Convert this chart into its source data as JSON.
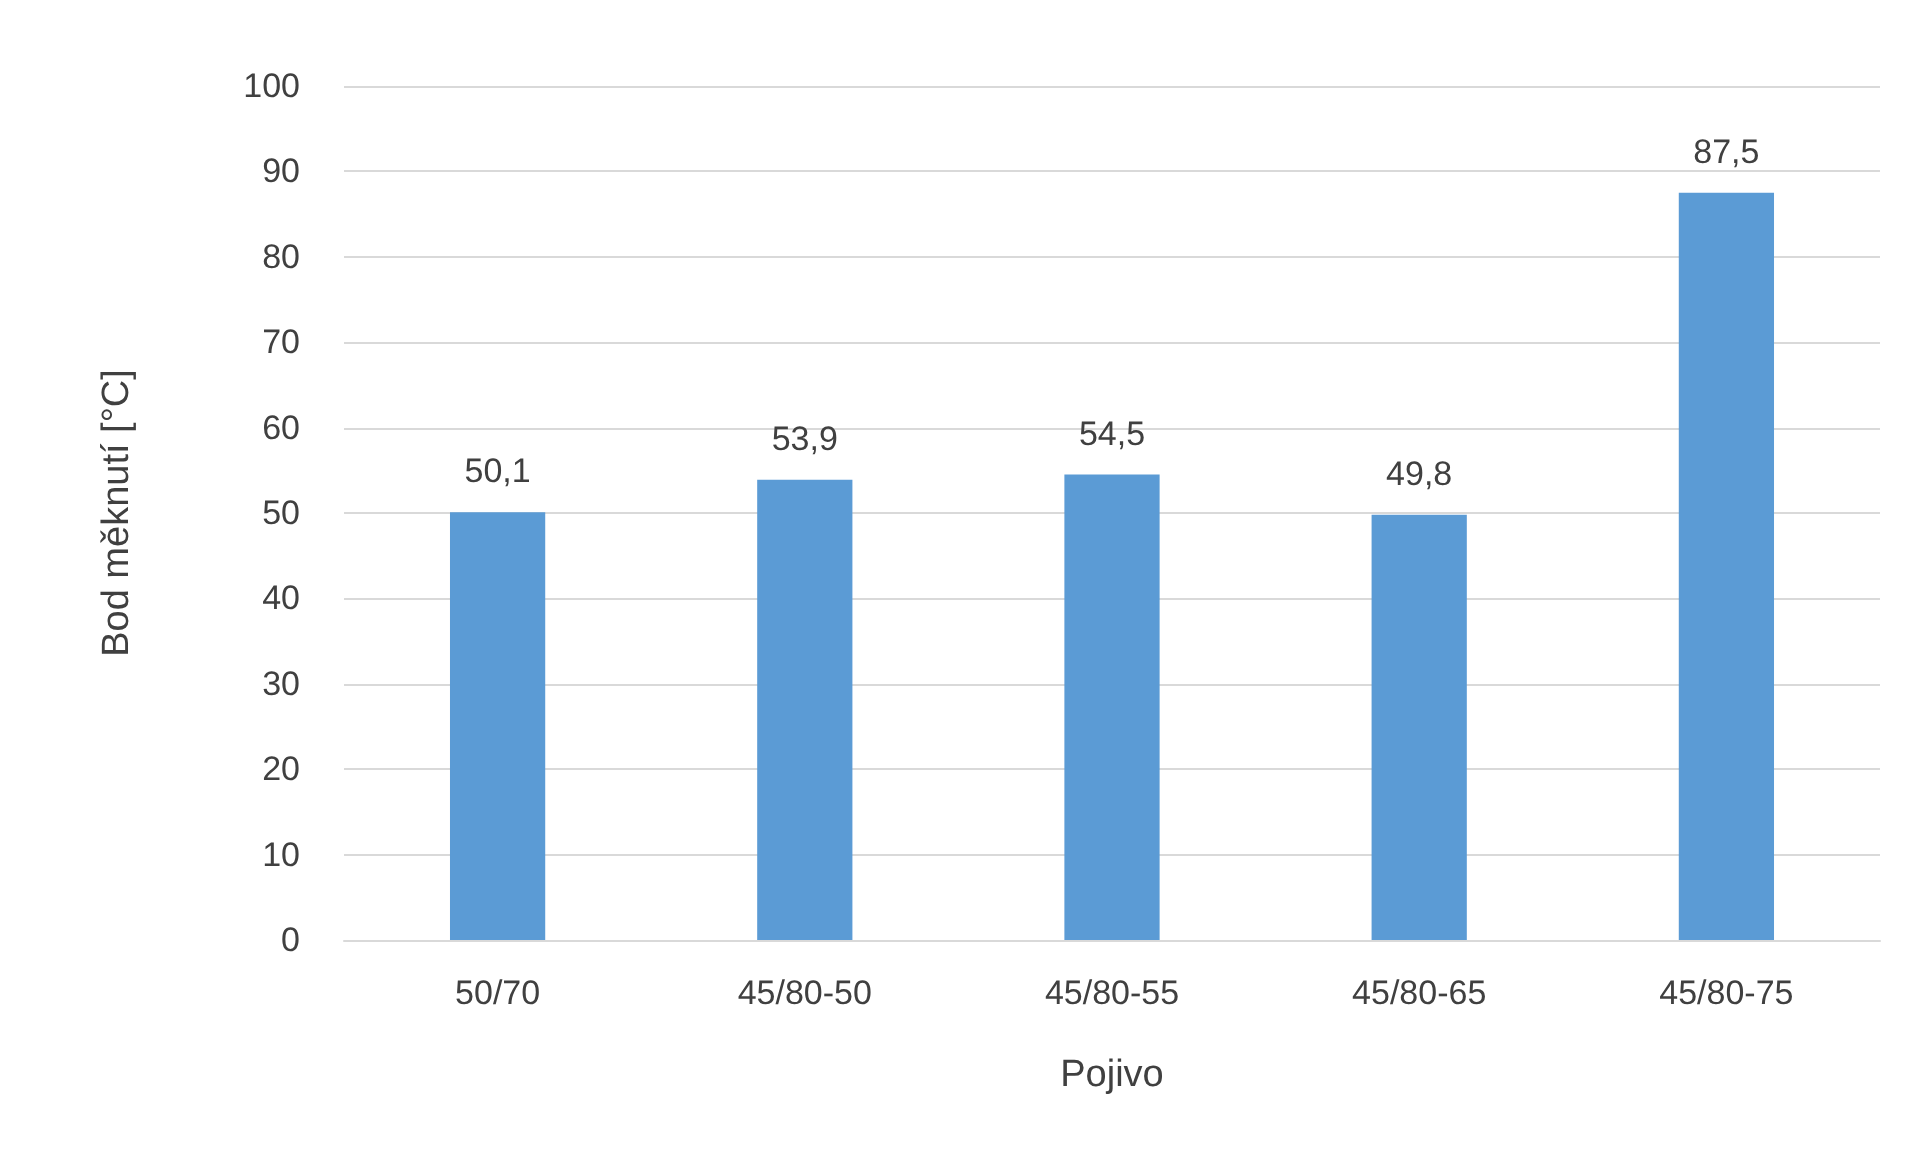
{
  "chart_data": {
    "type": "bar",
    "xlabel": "Pojivo",
    "ylabel": "Bod měknutí [°C]",
    "categories": [
      "50/70",
      "45/80-50",
      "45/80-55",
      "45/80-65",
      "45/80-75"
    ],
    "values": [
      50.1,
      53.9,
      54.5,
      49.8,
      87.5
    ],
    "value_labels": [
      "50,1",
      "53,9",
      "54,5",
      "49,8",
      "87,5"
    ],
    "color": "#5b9bd5",
    "ylim": [
      0,
      100
    ],
    "yticks": [
      0,
      10,
      20,
      30,
      40,
      50,
      60,
      70,
      80,
      90,
      100
    ],
    "grid": "y"
  }
}
